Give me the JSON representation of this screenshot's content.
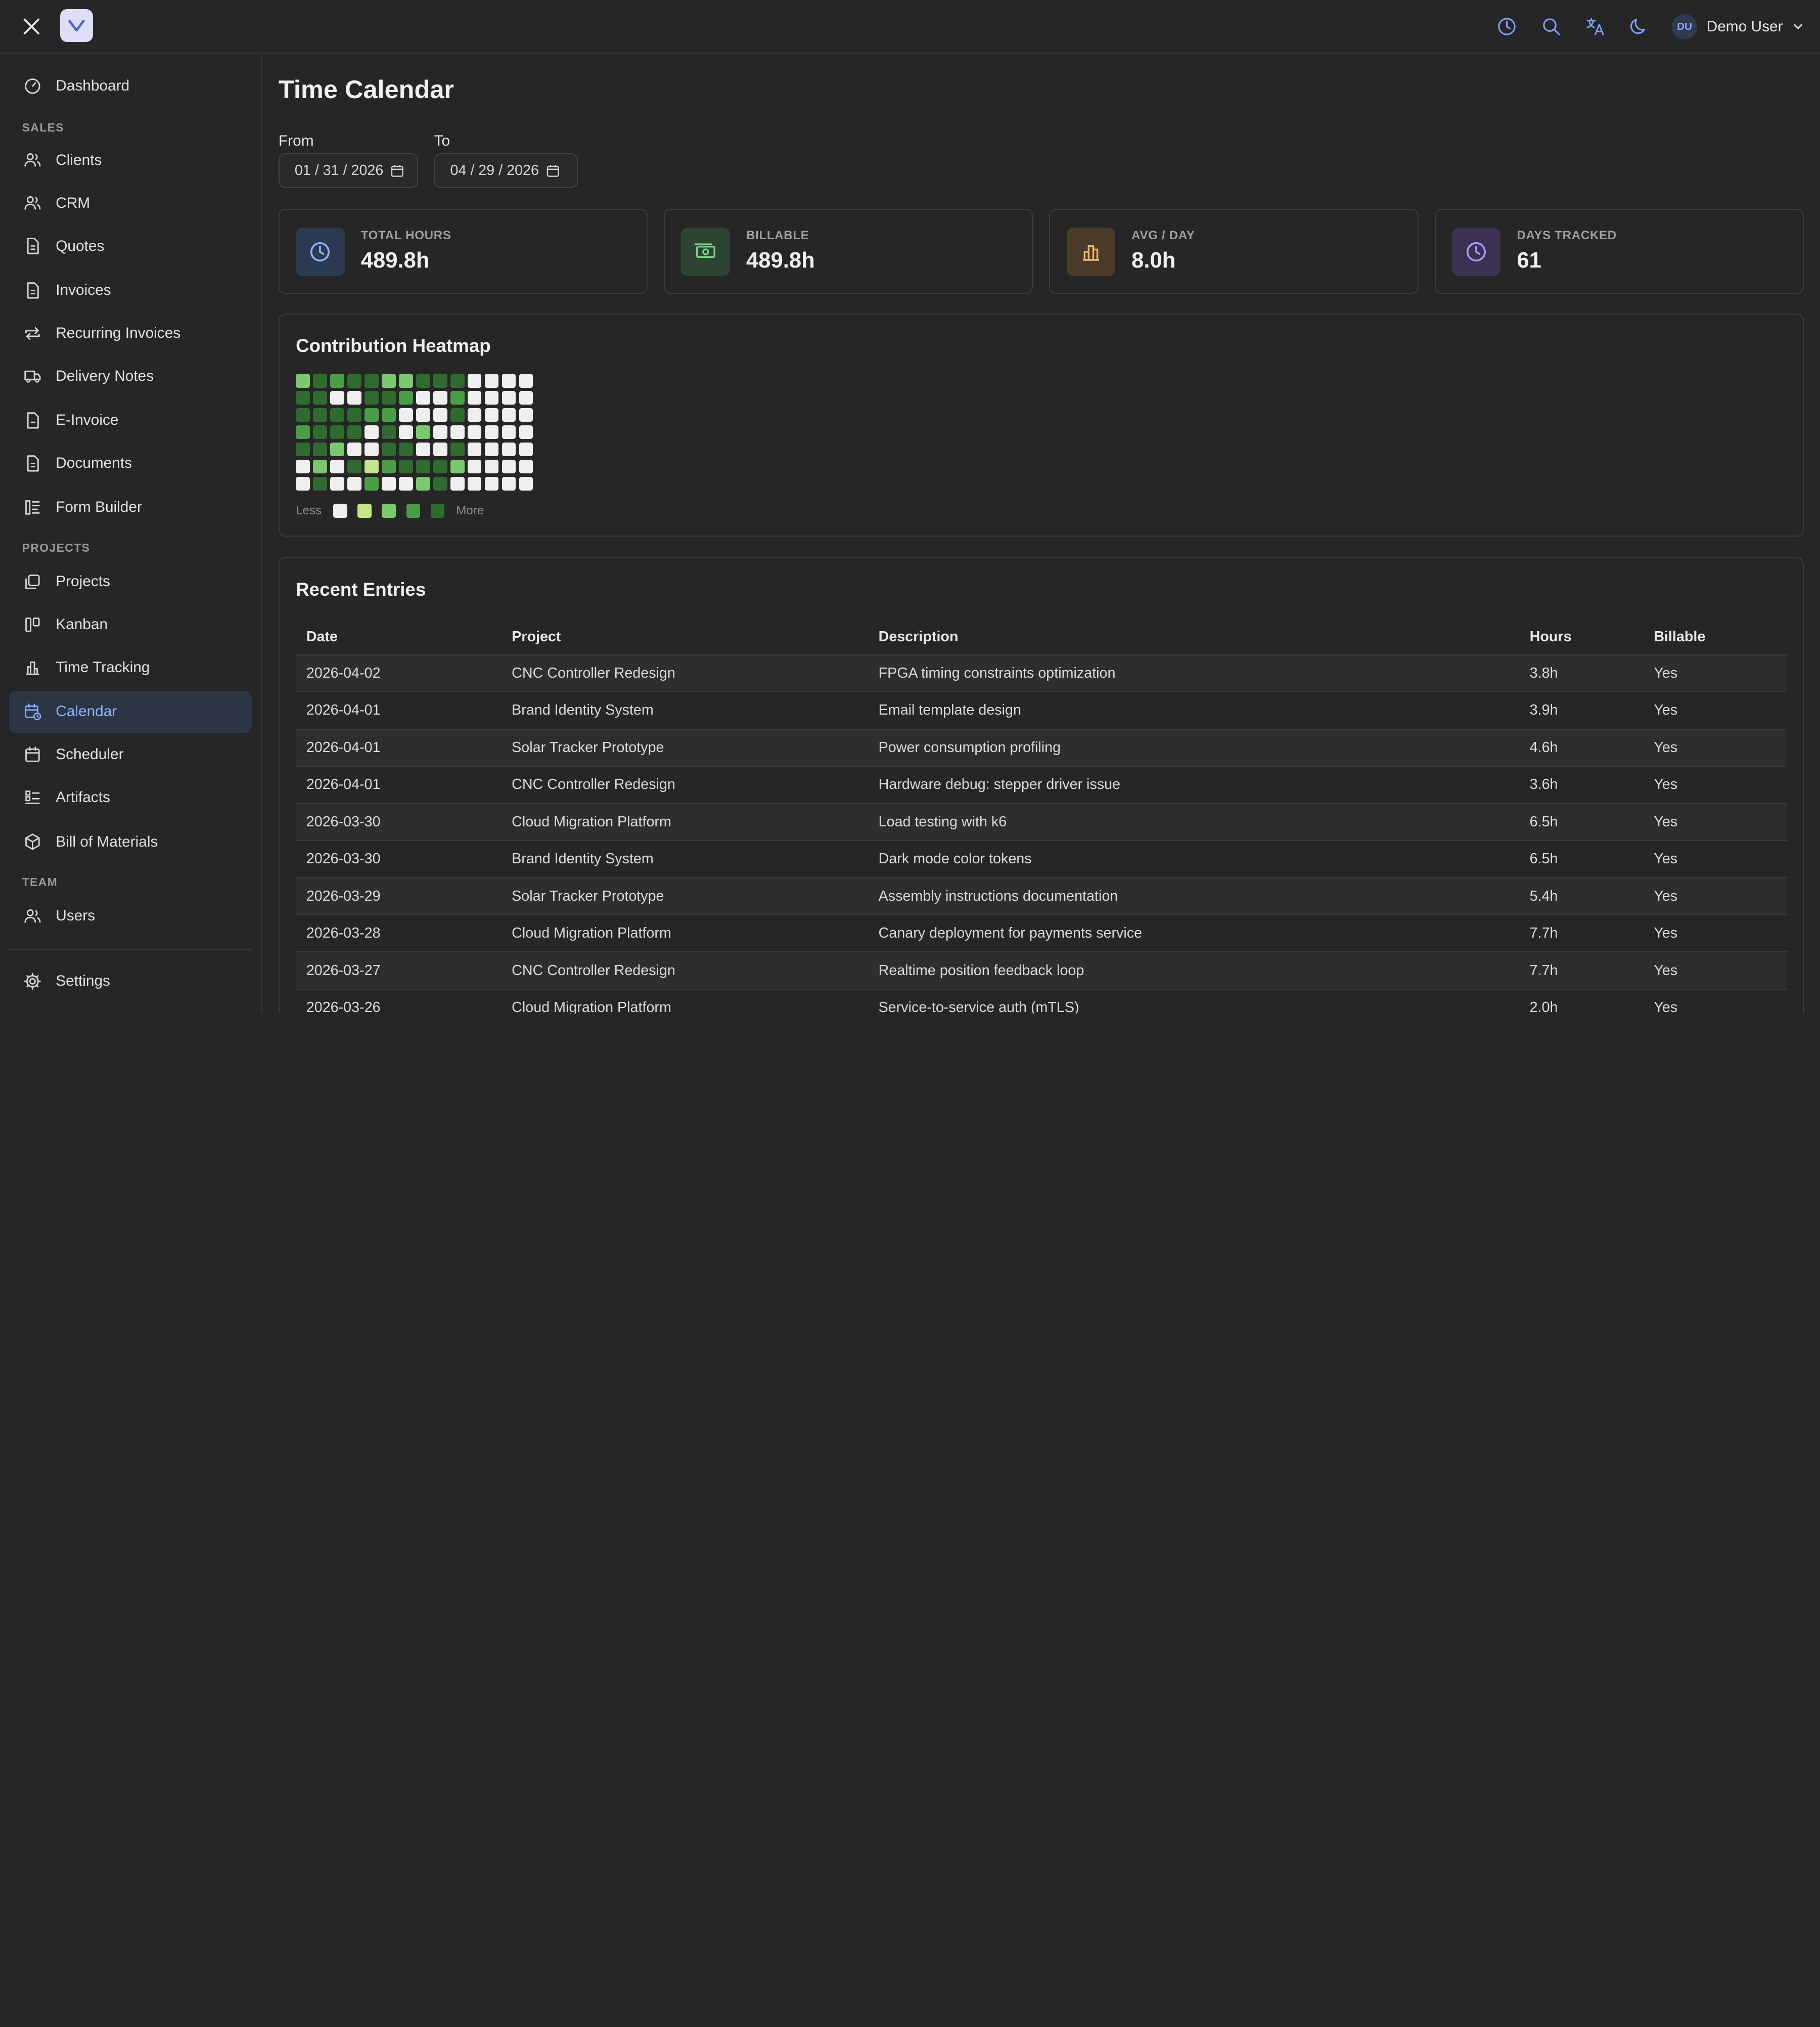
{
  "user": {
    "initials": "DU",
    "name": "Demo User"
  },
  "sidebar": {
    "dashboard": "Dashboard",
    "sales_header": "SALES",
    "clients": "Clients",
    "crm": "CRM",
    "quotes": "Quotes",
    "invoices": "Invoices",
    "recurring": "Recurring Invoices",
    "delivery": "Delivery Notes",
    "einvoice": "E-Invoice",
    "documents": "Documents",
    "formbuilder": "Form Builder",
    "projects_header": "PROJECTS",
    "projects": "Projects",
    "kanban": "Kanban",
    "timetracking": "Time Tracking",
    "calendar": "Calendar",
    "scheduler": "Scheduler",
    "artifacts": "Artifacts",
    "bom": "Bill of Materials",
    "team_header": "TEAM",
    "users": "Users",
    "settings": "Settings"
  },
  "page": {
    "title": "Time Calendar"
  },
  "filters": {
    "from_label": "From",
    "from_value": "01 / 31 / 2026",
    "to_label": "To",
    "to_value": "04 / 29 / 2026"
  },
  "stats": [
    {
      "label": "TOTAL HOURS",
      "value": "489.8h"
    },
    {
      "label": "BILLABLE",
      "value": "489.8h"
    },
    {
      "label": "AVG / DAY",
      "value": "8.0h"
    },
    {
      "label": "DAYS TRACKED",
      "value": "61"
    }
  ],
  "heatmap": {
    "title": "Contribution Heatmap",
    "less": "Less",
    "more": "More",
    "colors": [
      "#efefef",
      "#c6e48b",
      "#7bc96f",
      "#4a9e47",
      "#2f6b2e"
    ],
    "levels": [
      [
        2,
        4,
        3,
        4,
        4,
        2,
        2,
        4,
        4,
        4,
        0,
        0,
        0,
        0
      ],
      [
        4,
        4,
        0,
        0,
        4,
        4,
        3,
        0,
        0,
        3,
        0,
        0,
        0,
        0
      ],
      [
        4,
        4,
        4,
        4,
        3,
        3,
        0,
        0,
        0,
        4,
        0,
        0,
        0,
        0
      ],
      [
        3,
        4,
        4,
        4,
        0,
        4,
        0,
        2,
        0,
        0,
        0,
        0,
        0,
        0
      ],
      [
        4,
        4,
        2,
        0,
        0,
        4,
        4,
        0,
        0,
        4,
        0,
        0,
        0,
        0
      ],
      [
        0,
        2,
        0,
        4,
        1,
        3,
        4,
        4,
        4,
        2,
        0,
        0,
        0,
        0
      ],
      [
        0,
        4,
        0,
        0,
        3,
        0,
        0,
        2,
        4,
        0,
        0,
        0,
        0,
        0
      ]
    ]
  },
  "entries": {
    "title": "Recent Entries",
    "columns": [
      "Date",
      "Project",
      "Description",
      "Hours",
      "Billable"
    ],
    "rows": [
      [
        "2026-04-02",
        "CNC Controller Redesign",
        "FPGA timing constraints optimization",
        "3.8h",
        "Yes"
      ],
      [
        "2026-04-01",
        "Brand Identity System",
        "Email template design",
        "3.9h",
        "Yes"
      ],
      [
        "2026-04-01",
        "Solar Tracker Prototype",
        "Power consumption profiling",
        "4.6h",
        "Yes"
      ],
      [
        "2026-04-01",
        "CNC Controller Redesign",
        "Hardware debug: stepper driver issue",
        "3.6h",
        "Yes"
      ],
      [
        "2026-03-30",
        "Cloud Migration Platform",
        "Load testing with k6",
        "6.5h",
        "Yes"
      ],
      [
        "2026-03-30",
        "Brand Identity System",
        "Dark mode color tokens",
        "6.5h",
        "Yes"
      ],
      [
        "2026-03-29",
        "Solar Tracker Prototype",
        "Assembly instructions documentation",
        "5.4h",
        "Yes"
      ],
      [
        "2026-03-28",
        "Cloud Migration Platform",
        "Canary deployment for payments service",
        "7.7h",
        "Yes"
      ],
      [
        "2026-03-27",
        "CNC Controller Redesign",
        "Realtime position feedback loop",
        "7.7h",
        "Yes"
      ],
      [
        "2026-03-26",
        "Cloud Migration Platform",
        "Service-to-service auth (mTLS)",
        "2.0h",
        "Yes"
      ]
    ]
  }
}
